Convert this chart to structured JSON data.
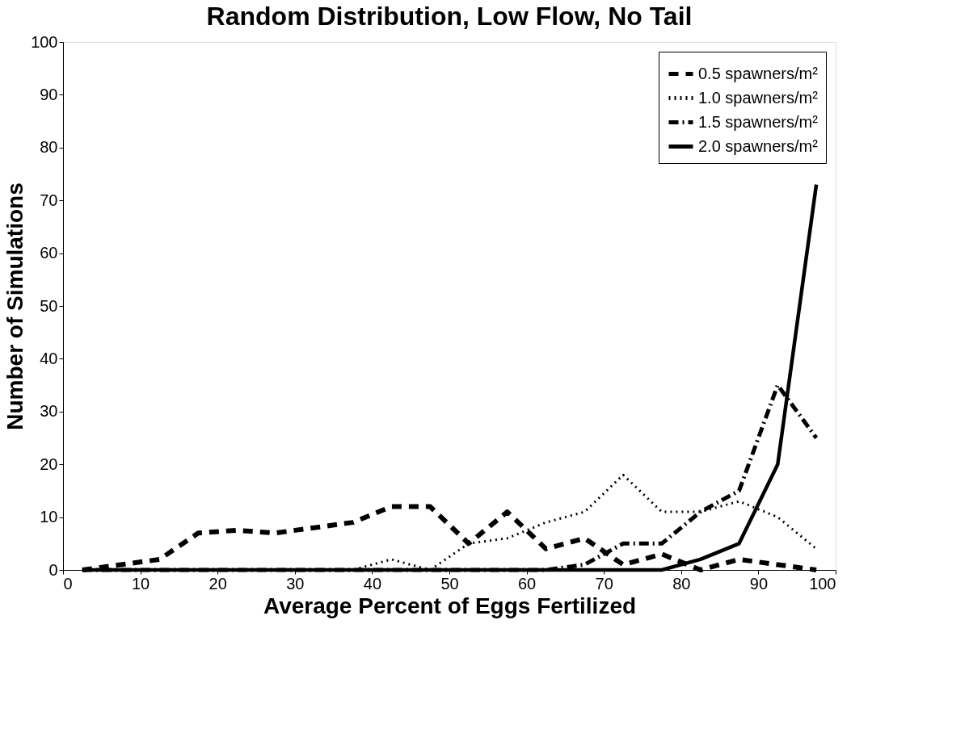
{
  "chart_data": {
    "type": "line",
    "title": "Random Distribution, Low Flow, No Tail",
    "xlabel": "Average Percent of Eggs Fertilized",
    "ylabel": "Number of Simulations",
    "x": [
      2.5,
      7.5,
      12.5,
      17.5,
      22.5,
      27.5,
      32.5,
      37.5,
      42.5,
      47.5,
      52.5,
      57.5,
      62.5,
      67.5,
      72.5,
      77.5,
      82.5,
      87.5,
      92.5,
      97.5
    ],
    "series": [
      {
        "name": "0.5 spawners/m²",
        "color": "#000000",
        "line_style": "dashed",
        "values": [
          0,
          1,
          2,
          7,
          7.5,
          7,
          8,
          9,
          12,
          12,
          5,
          11,
          4,
          6,
          1,
          3,
          0,
          2,
          1,
          0
        ]
      },
      {
        "name": "1.0 spawners/m²",
        "color": "#000000",
        "line_style": "dotted",
        "values": [
          0,
          0,
          0,
          0,
          0,
          0,
          0,
          0,
          2,
          0,
          5,
          6,
          9,
          11,
          18,
          11,
          11,
          13,
          10,
          4
        ]
      },
      {
        "name": "1.5 spawners/m²",
        "color": "#000000",
        "line_style": "dashdot",
        "values": [
          0,
          0,
          0,
          0,
          0,
          0,
          0,
          0,
          0,
          0,
          0,
          0,
          0,
          1,
          5,
          5,
          11,
          15,
          35,
          25
        ]
      },
      {
        "name": "2.0 spawners/m²",
        "color": "#000000",
        "line_style": "solid",
        "values": [
          0,
          0,
          0,
          0,
          0,
          0,
          0,
          0,
          0,
          0,
          0,
          0,
          0,
          0,
          0,
          0,
          2,
          5,
          20,
          73
        ]
      }
    ],
    "xlim": [
      0,
      100
    ],
    "ylim": [
      0,
      100
    ],
    "xticks": [
      0,
      10,
      20,
      30,
      40,
      50,
      60,
      70,
      80,
      90,
      100
    ],
    "yticks": [
      0,
      10,
      20,
      30,
      40,
      50,
      60,
      70,
      80,
      90,
      100
    ],
    "grid": false,
    "legend": "top right",
    "marker": "none"
  }
}
